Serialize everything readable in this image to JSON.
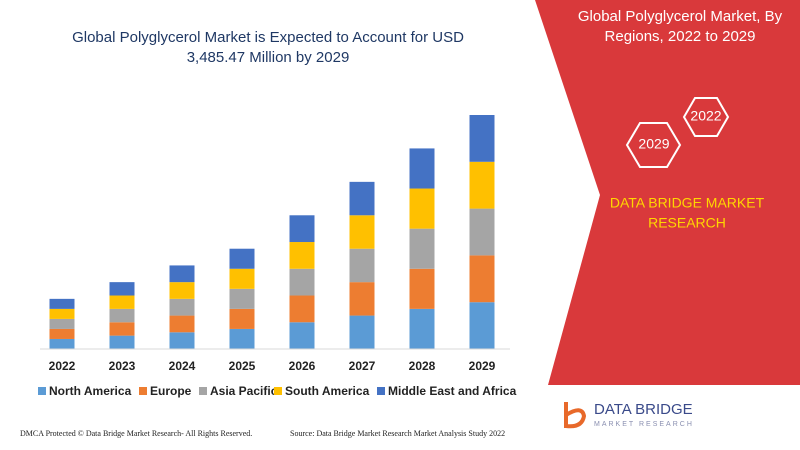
{
  "chart_data": {
    "type": "stacked_bar",
    "title": [
      "Global Polyglycerol Market is Expected to Account for USD",
      "3,485.47 Million by 2029"
    ],
    "categories": [
      "2022",
      "2023",
      "2024",
      "2025",
      "2026",
      "2027",
      "2028",
      "2029"
    ],
    "series": [
      {
        "name": "North America",
        "color": "#5b9bd5",
        "values": [
          150,
          200,
          250,
          300,
          400,
          500,
          600,
          700
        ]
      },
      {
        "name": "Europe",
        "color": "#ed7d31",
        "values": [
          150,
          200,
          250,
          300,
          400,
          500,
          600,
          700
        ]
      },
      {
        "name": "Asia Pacific",
        "color": "#a5a5a5",
        "values": [
          150,
          200,
          250,
          300,
          400,
          500,
          600,
          700
        ]
      },
      {
        "name": "South America",
        "color": "#ffc000",
        "values": [
          150,
          200,
          250,
          300,
          400,
          500,
          600,
          700
        ]
      },
      {
        "name": "Middle East and Africa",
        "color": "#4472c4",
        "values": [
          150,
          200,
          250,
          300,
          400,
          500,
          600,
          700
        ]
      }
    ],
    "legend": "bottom"
  },
  "panel": {
    "title": [
      "Global Polyglycerol Market, By",
      "Regions, 2022 to 2029"
    ],
    "hexagons": [
      "2022",
      "2029"
    ],
    "brand": [
      "DATA BRIDGE MARKET",
      "RESEARCH"
    ]
  },
  "logo": {
    "name": "DATA BRIDGE",
    "tagline": "MARKET RESEARCH"
  },
  "footer": {
    "left": "DMCA Protected © Data Bridge Market Research- All Rights Reserved.",
    "right": "Source: Data Bridge Market Research Market Analysis Study 2022"
  }
}
